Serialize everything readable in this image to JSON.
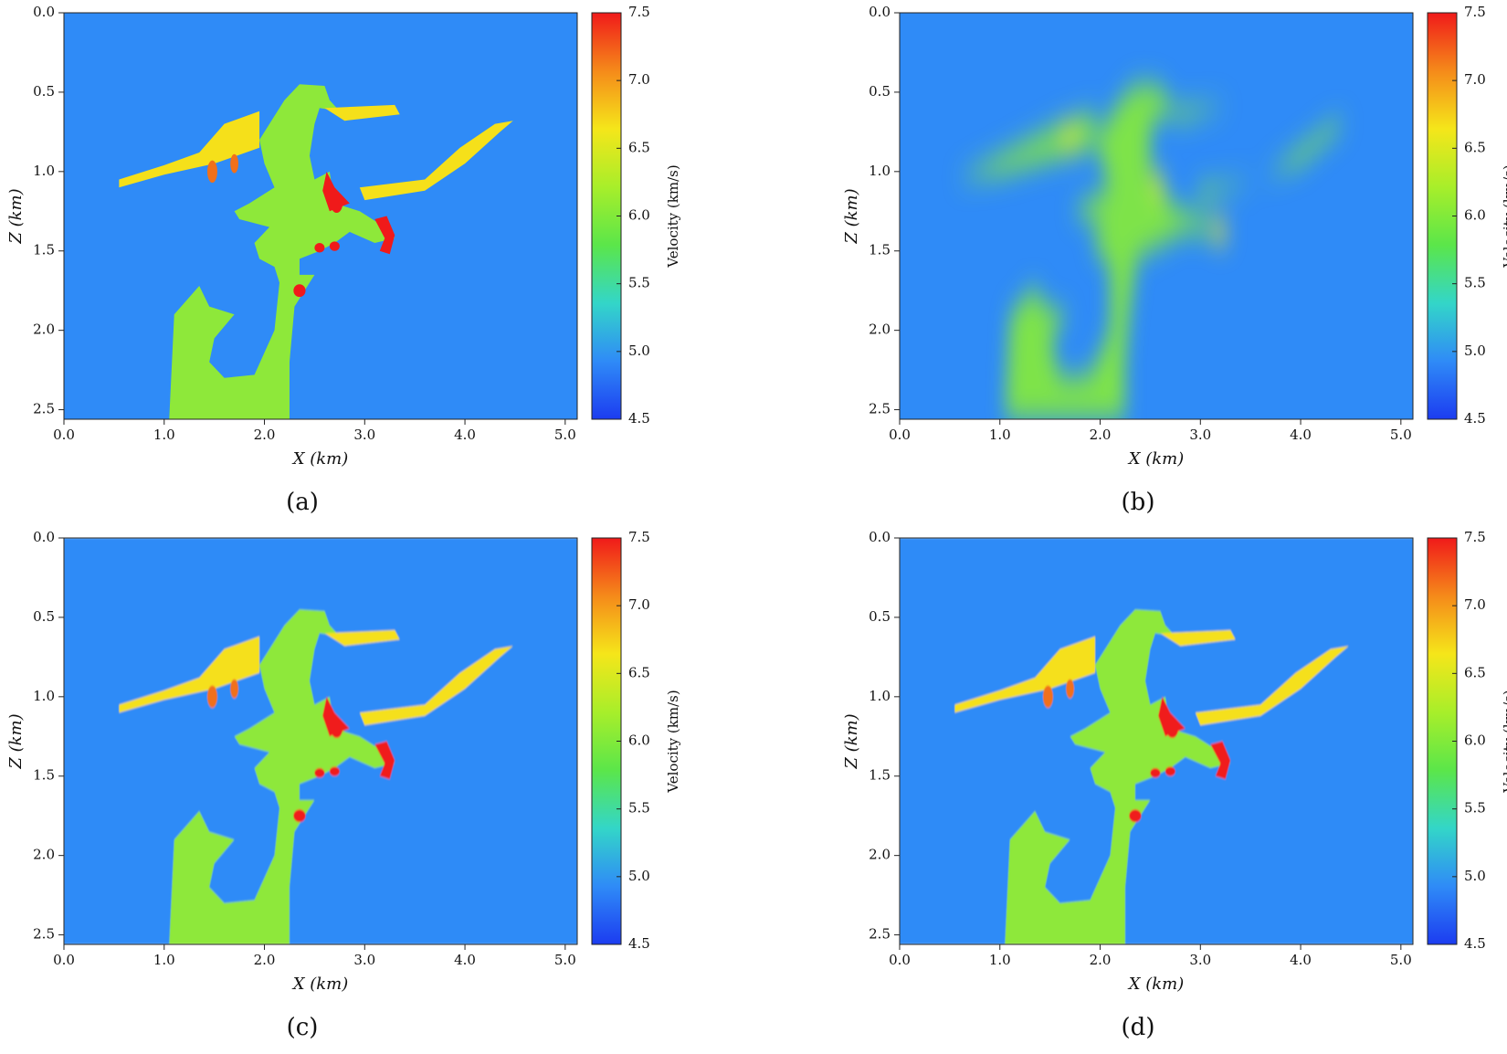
{
  "chart_data": [
    {
      "type": "heatmap",
      "caption": "(a)",
      "xlabel": "X (km)",
      "ylabel": "Z (km)",
      "colorbar_label": "Velocity (km/s)",
      "xlim": [
        0,
        5.12
      ],
      "ylim": [
        0,
        2.56
      ],
      "clim": [
        4.5,
        7.5
      ],
      "xticks": [
        {
          "value": 0,
          "label": "0.0"
        },
        {
          "value": 1,
          "label": "1.0"
        },
        {
          "value": 2,
          "label": "2.0"
        },
        {
          "value": 3,
          "label": "3.0"
        },
        {
          "value": 4,
          "label": "4.0"
        },
        {
          "value": 5,
          "label": "5.0"
        }
      ],
      "yticks": [
        {
          "value": 0,
          "label": "0.0"
        },
        0.5,
        {
          "value": 1,
          "label": "1.0"
        },
        1.5,
        {
          "value": 2,
          "label": "2.0"
        },
        2.5
      ],
      "cticks": [
        4.5,
        {
          "value": 5,
          "label": "5.0"
        },
        5.5,
        {
          "value": 6,
          "label": "6.0"
        },
        6.5,
        {
          "value": 7,
          "label": "7.0"
        },
        7.5
      ],
      "colorscale": [
        "#1c3cf0",
        "#2f8bf7",
        "#33d6c8",
        "#5be64a",
        "#a8ee2a",
        "#f5e61a",
        "#f58a1a",
        "#f01a1a"
      ]
    },
    {
      "type": "heatmap",
      "caption": "(b)",
      "xlabel": "X (km)",
      "ylabel": "Z (km)",
      "colorbar_label": "Velocity (km/s)",
      "xlim": [
        0,
        5.12
      ],
      "ylim": [
        0,
        2.56
      ],
      "clim": [
        4.5,
        7.5
      ],
      "xticks": [
        {
          "value": 0,
          "label": "0.0"
        },
        {
          "value": 1,
          "label": "1.0"
        },
        {
          "value": 2,
          "label": "2.0"
        },
        {
          "value": 3,
          "label": "3.0"
        },
        {
          "value": 4,
          "label": "4.0"
        },
        {
          "value": 5,
          "label": "5.0"
        }
      ],
      "yticks": [
        {
          "value": 0,
          "label": "0.0"
        },
        0.5,
        {
          "value": 1,
          "label": "1.0"
        },
        1.5,
        {
          "value": 2,
          "label": "2.0"
        },
        2.5
      ],
      "cticks": [
        4.5,
        {
          "value": 5,
          "label": "5.0"
        },
        5.5,
        {
          "value": 6,
          "label": "6.0"
        },
        6.5,
        {
          "value": 7,
          "label": "7.0"
        },
        7.5
      ],
      "colorscale": [
        "#1c3cf0",
        "#2f8bf7",
        "#33d6c8",
        "#5be64a",
        "#a8ee2a",
        "#f5e61a",
        "#f58a1a",
        "#f01a1a"
      ]
    },
    {
      "type": "heatmap",
      "caption": "(c)",
      "xlabel": "X (km)",
      "ylabel": "Z (km)",
      "colorbar_label": "Velocity (km/s)",
      "xlim": [
        0,
        5.12
      ],
      "ylim": [
        0,
        2.56
      ],
      "clim": [
        4.5,
        7.5
      ],
      "xticks": [
        {
          "value": 0,
          "label": "0.0"
        },
        {
          "value": 1,
          "label": "1.0"
        },
        {
          "value": 2,
          "label": "2.0"
        },
        {
          "value": 3,
          "label": "3.0"
        },
        {
          "value": 4,
          "label": "4.0"
        },
        {
          "value": 5,
          "label": "5.0"
        }
      ],
      "yticks": [
        {
          "value": 0,
          "label": "0.0"
        },
        0.5,
        {
          "value": 1,
          "label": "1.0"
        },
        1.5,
        {
          "value": 2,
          "label": "2.0"
        },
        2.5
      ],
      "cticks": [
        4.5,
        {
          "value": 5,
          "label": "5.0"
        },
        5.5,
        {
          "value": 6,
          "label": "6.0"
        },
        6.5,
        {
          "value": 7,
          "label": "7.0"
        },
        7.5
      ],
      "colorscale": [
        "#1c3cf0",
        "#2f8bf7",
        "#33d6c8",
        "#5be64a",
        "#a8ee2a",
        "#f5e61a",
        "#f58a1a",
        "#f01a1a"
      ]
    },
    {
      "type": "heatmap",
      "caption": "(d)",
      "xlabel": "X (km)",
      "ylabel": "Z (km)",
      "colorbar_label": "Velocity (km/s)",
      "xlim": [
        0,
        5.12
      ],
      "ylim": [
        0,
        2.56
      ],
      "clim": [
        4.5,
        7.5
      ],
      "xticks": [
        {
          "value": 0,
          "label": "0.0"
        },
        {
          "value": 1,
          "label": "1.0"
        },
        {
          "value": 2,
          "label": "2.0"
        },
        {
          "value": 3,
          "label": "3.0"
        },
        {
          "value": 4,
          "label": "4.0"
        },
        {
          "value": 5,
          "label": "5.0"
        }
      ],
      "yticks": [
        {
          "value": 0,
          "label": "0.0"
        },
        0.5,
        {
          "value": 1,
          "label": "1.0"
        },
        1.5,
        {
          "value": 2,
          "label": "2.0"
        },
        2.5
      ],
      "cticks": [
        4.5,
        {
          "value": 5,
          "label": "5.0"
        },
        5.5,
        {
          "value": 6,
          "label": "6.0"
        },
        6.5,
        {
          "value": 7,
          "label": "7.0"
        },
        7.5
      ],
      "colorscale": [
        "#1c3cf0",
        "#2f8bf7",
        "#33d6c8",
        "#5be64a",
        "#a8ee2a",
        "#f5e61a",
        "#f58a1a",
        "#f01a1a"
      ]
    }
  ]
}
